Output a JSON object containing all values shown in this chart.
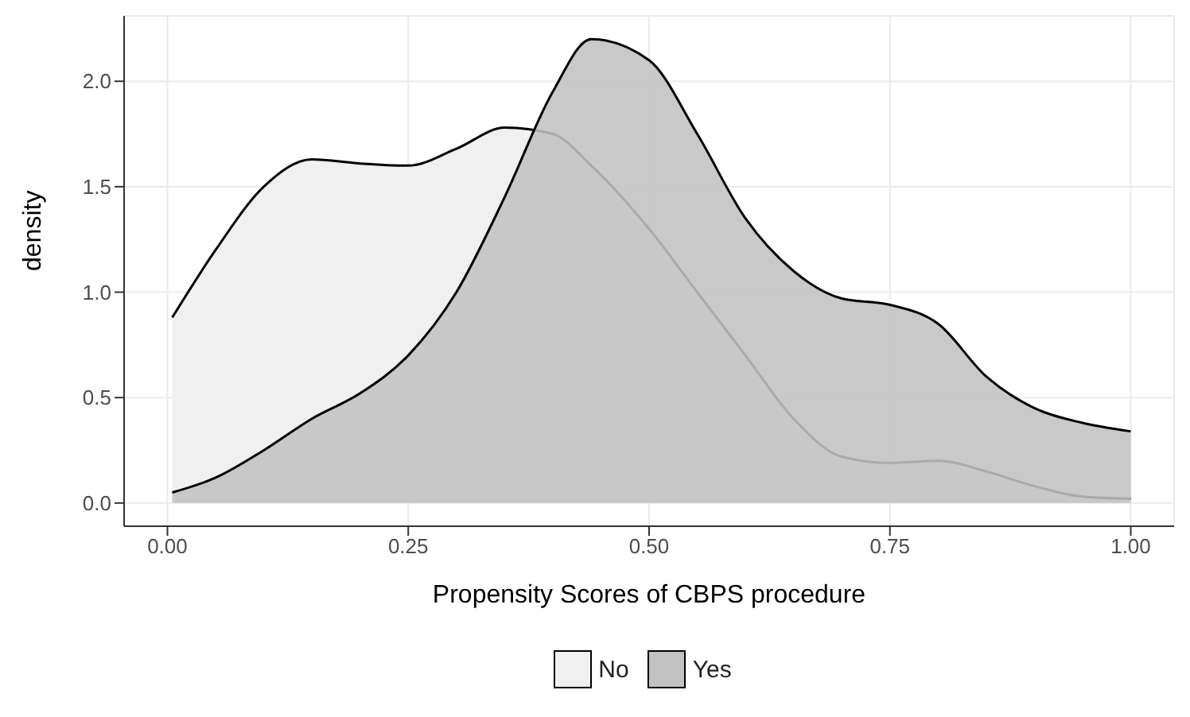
{
  "chart_data": {
    "type": "area",
    "xlabel": "Propensity Scores of CBPS procedure",
    "ylabel": "density",
    "x": [
      0.005,
      0.05,
      0.1,
      0.15,
      0.2,
      0.25,
      0.3,
      0.35,
      0.4,
      0.44,
      0.5,
      0.55,
      0.6,
      0.65,
      0.7,
      0.75,
      0.8,
      0.85,
      0.9,
      0.95,
      1.0
    ],
    "series": [
      {
        "name": "No",
        "color": "#f0f0f0",
        "values": [
          0.88,
          1.2,
          1.5,
          1.63,
          1.61,
          1.6,
          1.68,
          1.78,
          1.75,
          1.6,
          1.3,
          1.0,
          0.7,
          0.4,
          0.22,
          0.19,
          0.2,
          0.15,
          0.08,
          0.03,
          0.02
        ]
      },
      {
        "name": "Yes",
        "color": "#c2c2c2",
        "values": [
          0.05,
          0.12,
          0.25,
          0.4,
          0.52,
          0.7,
          1.0,
          1.45,
          1.95,
          2.2,
          2.1,
          1.75,
          1.35,
          1.1,
          0.97,
          0.94,
          0.85,
          0.6,
          0.45,
          0.38,
          0.34
        ]
      }
    ],
    "xlim": [
      -0.045,
      1.045
    ],
    "xticks": [
      {
        "value": 0,
        "label": "0.00"
      },
      {
        "value": 0.25,
        "label": "0.25"
      },
      {
        "value": 0.5,
        "label": "0.50"
      },
      {
        "value": 0.75,
        "label": "0.75"
      },
      {
        "value": 1,
        "label": "1.00"
      }
    ],
    "ylim": [
      -0.11,
      2.31
    ],
    "yticks": [
      {
        "value": 0,
        "label": "0.0"
      },
      {
        "value": 0.5,
        "label": "0.5"
      },
      {
        "value": 1,
        "label": "1.0"
      },
      {
        "value": 1.5,
        "label": "1.5"
      },
      {
        "value": 2,
        "label": "2.0"
      }
    ],
    "grid": true,
    "legend": "bottom"
  }
}
